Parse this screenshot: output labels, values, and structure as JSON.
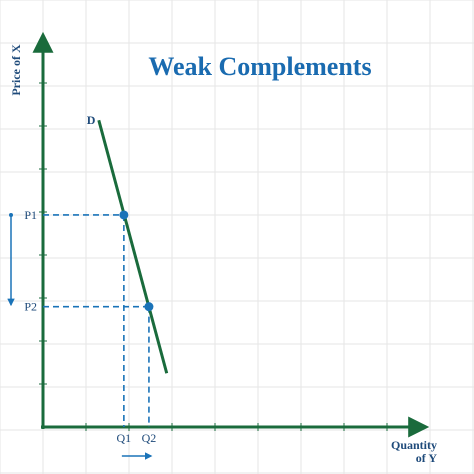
{
  "chart_data": {
    "type": "line",
    "title": "Weak Complements",
    "xlabel_lines": [
      "Quantity",
      "of Y"
    ],
    "ylabel": "Price of X",
    "grid": true,
    "curve_label": "D",
    "curve": [
      {
        "q": 1.38,
        "p": 7.19
      },
      {
        "q": 3.06,
        "p": 1.26
      }
    ],
    "points": [
      {
        "q": 2.0,
        "p": 4.97,
        "x_label": "Q1",
        "y_label": "P1"
      },
      {
        "q": 2.62,
        "p": 2.82,
        "x_label": "Q2",
        "y_label": "P2"
      }
    ],
    "xlim": [
      0,
      9.25
    ],
    "ylim": [
      0,
      9.0
    ],
    "price_change_arrow": "down",
    "quantity_change_arrow": "right",
    "colors": {
      "axis": "#1a6b3c",
      "curve": "#1a6b3c",
      "guide": "#1a73b8",
      "title": "#1a6bb0",
      "label": "#1e4a7a",
      "grid": "#e6e6e6"
    }
  }
}
